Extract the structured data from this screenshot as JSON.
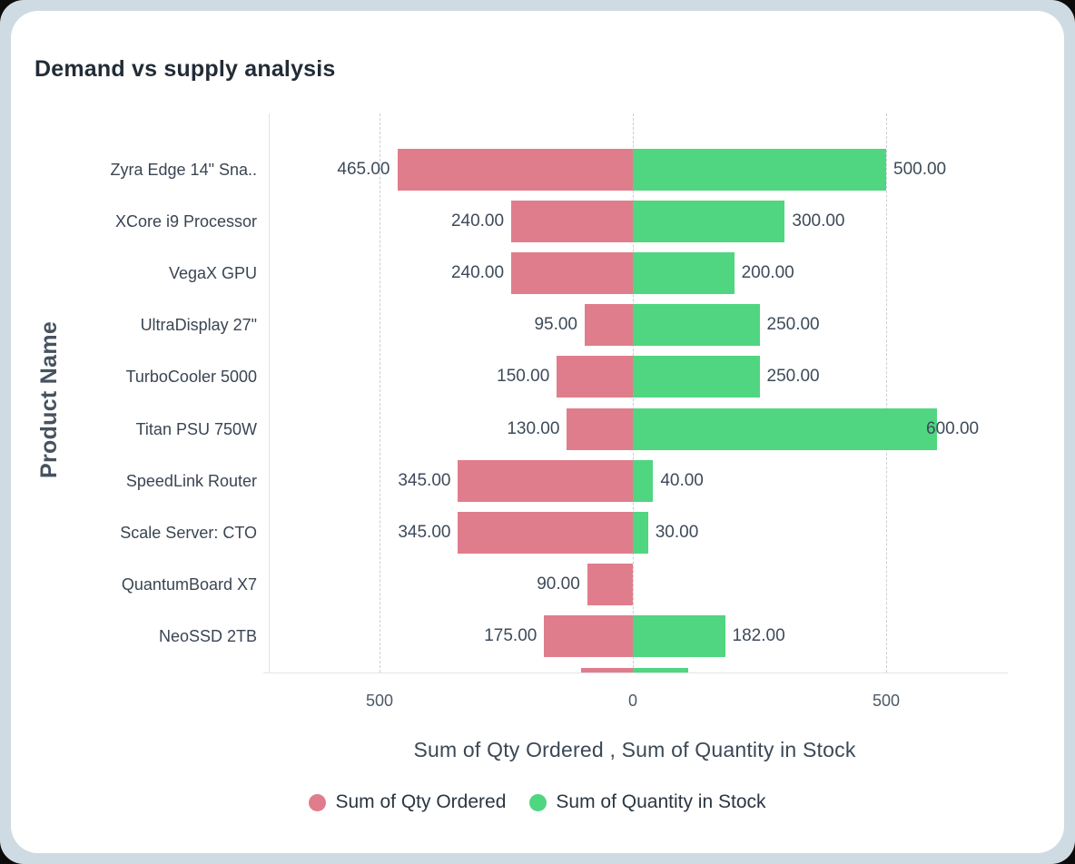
{
  "header": {
    "title": "Demand vs supply analysis"
  },
  "colors": {
    "ordered": "#e07d8c",
    "stock": "#50d680",
    "frame_background": "#cfdbe2",
    "card_background": "#ffffff",
    "grid": "#c9cfd7",
    "text_dark": "#222c36"
  },
  "chart_data": {
    "type": "bar",
    "orientation": "horizontal_diverging",
    "title": "Demand vs supply analysis",
    "xlabel": "Sum of Qty Ordered , Sum of Quantity in Stock",
    "ylabel": "Product Name",
    "grid": "dashed-vertical",
    "legend_position": "bottom",
    "x_range": [
      -730,
      730
    ],
    "x_ticks": [
      {
        "label": "500",
        "value": -500
      },
      {
        "label": "0",
        "value": 0
      },
      {
        "label": "500",
        "value": 500
      }
    ],
    "categories": [
      "Zyra Edge 14\" Sna..",
      "XCore i9 Processor",
      "VegaX GPU",
      "UltraDisplay 27\"",
      "TurboCooler 5000",
      "Titan PSU 750W",
      "SpeedLink Router",
      "Scale Server: CTO",
      "QuantumBoard X7",
      "NeoSSD 2TB"
    ],
    "series": [
      {
        "name": "Sum of Qty Ordered",
        "color": "#e07d8c",
        "direction": "left",
        "values": [
          465,
          240,
          240,
          95,
          150,
          130,
          345,
          345,
          90,
          175
        ],
        "value_labels": [
          "465.00",
          "240.00",
          "240.00",
          "95.00",
          "150.00",
          "130.00",
          "345.00",
          "345.00",
          "90.00",
          "175.00"
        ]
      },
      {
        "name": "Sum of Quantity in Stock",
        "color": "#50d680",
        "direction": "right",
        "values": [
          500,
          300,
          200,
          250,
          250,
          600,
          40,
          30,
          0,
          182
        ],
        "value_labels": [
          "500.00",
          "300.00",
          "200.00",
          "250.00",
          "250.00",
          "600.00",
          "40.00",
          "30.00",
          "",
          "182.00"
        ]
      }
    ],
    "partial_row": {
      "note": "eleventh row clipped at bottom edge of plot, values not labeled",
      "ordered_est": 102,
      "stock_est": 109
    }
  },
  "legend": {
    "items": [
      {
        "label": "Sum of Qty Ordered",
        "color": "#e07d8c"
      },
      {
        "label": "Sum of Quantity in Stock",
        "color": "#50d680"
      }
    ]
  }
}
